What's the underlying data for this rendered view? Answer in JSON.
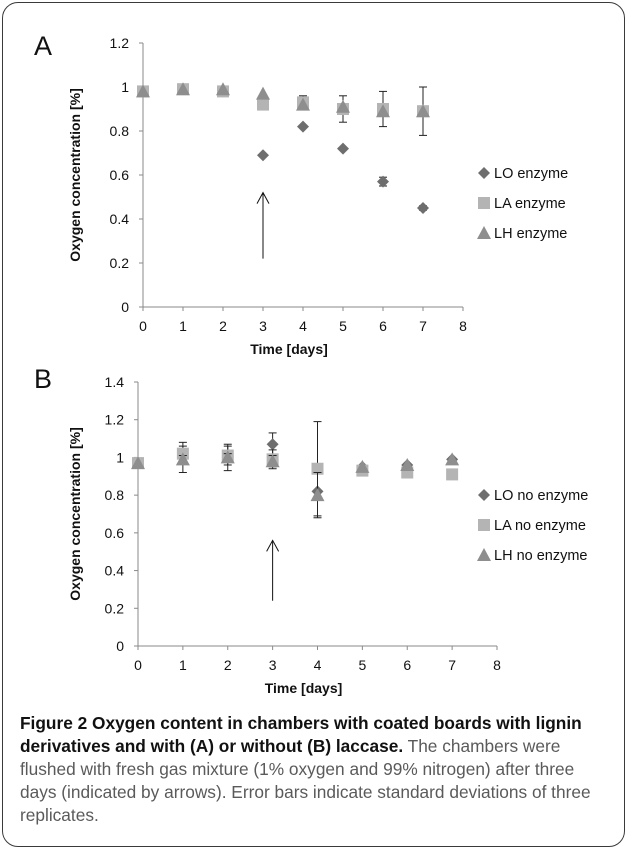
{
  "chart_data": [
    {
      "panel": "A",
      "type": "scatter",
      "xlabel": "Time [days]",
      "ylabel": "Oxygen concentration [%]",
      "xlim": [
        0,
        8
      ],
      "ylim": [
        0,
        1.2
      ],
      "x_ticks": [
        0,
        1,
        2,
        3,
        4,
        5,
        6,
        7,
        8
      ],
      "y_ticks": [
        0,
        0.2,
        0.4,
        0.6,
        0.8,
        1,
        1.2
      ],
      "y_tick_labels": [
        "0",
        "0.2",
        "0.4",
        "0.6",
        "0.8",
        "1",
        "1.2"
      ],
      "grid": false,
      "legend_position": "right",
      "series": [
        {
          "name": "LO enzyme",
          "marker": "diamond",
          "color": "#6e6e6e",
          "x": [
            0,
            1,
            2,
            3,
            4,
            5,
            6,
            7
          ],
          "y": [
            0.98,
            0.99,
            0.98,
            0.69,
            0.82,
            0.72,
            0.57,
            0.45
          ],
          "err": [
            0.01,
            0.01,
            0.02,
            0,
            0,
            0,
            0.02,
            0.01
          ]
        },
        {
          "name": "LA enzyme",
          "marker": "square",
          "color": "#b4b4b4",
          "x": [
            0,
            1,
            2,
            3,
            4,
            5,
            6,
            7
          ],
          "y": [
            0.98,
            0.99,
            0.98,
            0.92,
            0.93,
            0.9,
            0.9,
            0.89
          ],
          "err": [
            0,
            0,
            0,
            0.01,
            0.03,
            0.06,
            0.08,
            0.11
          ]
        },
        {
          "name": "LH enzyme",
          "marker": "triangle",
          "color": "#8e8e8e",
          "x": [
            0,
            1,
            2,
            3,
            4,
            5,
            6,
            7
          ],
          "y": [
            0.98,
            0.99,
            0.99,
            0.97,
            0.92,
            0.91,
            0.89,
            0.89
          ],
          "err": [
            0,
            0,
            0,
            0,
            0,
            0,
            0,
            0
          ]
        }
      ],
      "arrow_at_x": 3,
      "arrow_from_y": 0.22,
      "arrow_to_y": 0.52
    },
    {
      "panel": "B",
      "type": "scatter",
      "xlabel": "Time [days]",
      "ylabel": "Oxygen concentration [%]",
      "xlim": [
        0,
        8
      ],
      "ylim": [
        0,
        1.4
      ],
      "x_ticks": [
        0,
        1,
        2,
        3,
        4,
        5,
        6,
        7,
        8
      ],
      "y_ticks": [
        0,
        0.2,
        0.4,
        0.6,
        0.8,
        1,
        1.2,
        1.4
      ],
      "y_tick_labels": [
        "0",
        "0.2",
        "0.4",
        "0.6",
        "0.8",
        "1",
        "1.2",
        "1.4"
      ],
      "grid": false,
      "legend_position": "right",
      "series": [
        {
          "name": "LO no enzyme",
          "marker": "diamond",
          "color": "#6e6e6e",
          "x": [
            0,
            1,
            2,
            3,
            4,
            5,
            6,
            7
          ],
          "y": [
            0.97,
            1.0,
            1.0,
            1.07,
            0.82,
            0.95,
            0.96,
            0.99
          ],
          "err": [
            0,
            0.08,
            0.07,
            0.06,
            0,
            0,
            0,
            0
          ]
        },
        {
          "name": "LA no enzyme",
          "marker": "square",
          "color": "#b4b4b4",
          "x": [
            0,
            1,
            2,
            3,
            4,
            5,
            6,
            7
          ],
          "y": [
            0.97,
            1.02,
            1.01,
            0.99,
            0.94,
            0.93,
            0.92,
            0.91
          ],
          "err": [
            0,
            0.04,
            0.05,
            0.05,
            0.25,
            0,
            0,
            0
          ]
        },
        {
          "name": "LH no enzyme",
          "marker": "triangle",
          "color": "#8e8e8e",
          "x": [
            0,
            1,
            2,
            3,
            4,
            5,
            6,
            7
          ],
          "y": [
            0.97,
            0.99,
            1.0,
            0.98,
            0.8,
            0.95,
            0.96,
            0.99
          ],
          "err": [
            0,
            0.02,
            0.02,
            0.03,
            0.12,
            0,
            0,
            0
          ]
        }
      ],
      "arrow_at_x": 3,
      "arrow_from_y": 0.24,
      "arrow_to_y": 0.56
    }
  ],
  "caption": {
    "bold": "Figure 2 Oxygen content in chambers with coated boards with lignin derivatives and with (A) or without (B) laccase.",
    "text": " The chambers were flushed with fresh gas mixture (1% oxygen and 99% nitrogen) after three days (indicated by arrows). Error bars indicate standard deviations of three replicates."
  }
}
